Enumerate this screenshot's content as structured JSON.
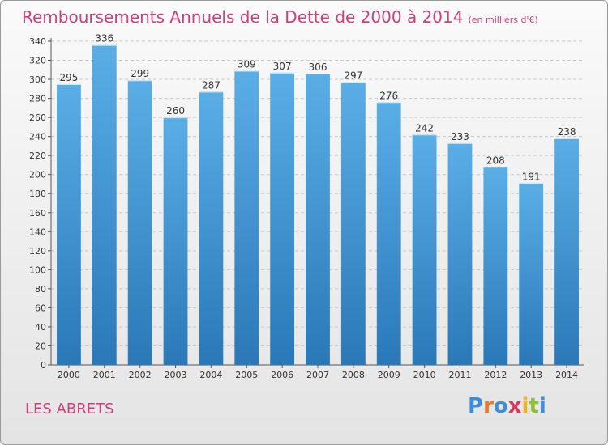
{
  "title": "Remboursements Annuels de la Dette de 2000 à 2014",
  "subtitle": "(en milliers d'€)",
  "city": "LES ABRETS",
  "brand": "Proxiti",
  "colors": {
    "title": "#cc3f7a",
    "bar_top": "#5aaee6",
    "bar_bottom": "#2a78b8",
    "brand_letters": [
      "#3b8fd8",
      "#e8772a",
      "#3b8fd8",
      "#d83a5f",
      "#f0b41e",
      "#8cbf3a",
      "#3b8fd8"
    ]
  },
  "chart_data": {
    "type": "bar",
    "categories": [
      "2000",
      "2001",
      "2002",
      "2003",
      "2004",
      "2005",
      "2006",
      "2007",
      "2008",
      "2009",
      "2010",
      "2011",
      "2012",
      "2013",
      "2014"
    ],
    "values": [
      295,
      336,
      299,
      260,
      287,
      309,
      307,
      306,
      297,
      276,
      242,
      233,
      208,
      191,
      238
    ],
    "ylim": [
      0,
      340
    ],
    "yticks": [
      0,
      20,
      40,
      60,
      80,
      100,
      120,
      140,
      160,
      180,
      200,
      220,
      240,
      260,
      280,
      300,
      320,
      340
    ],
    "grid": true,
    "data_labels": true
  }
}
